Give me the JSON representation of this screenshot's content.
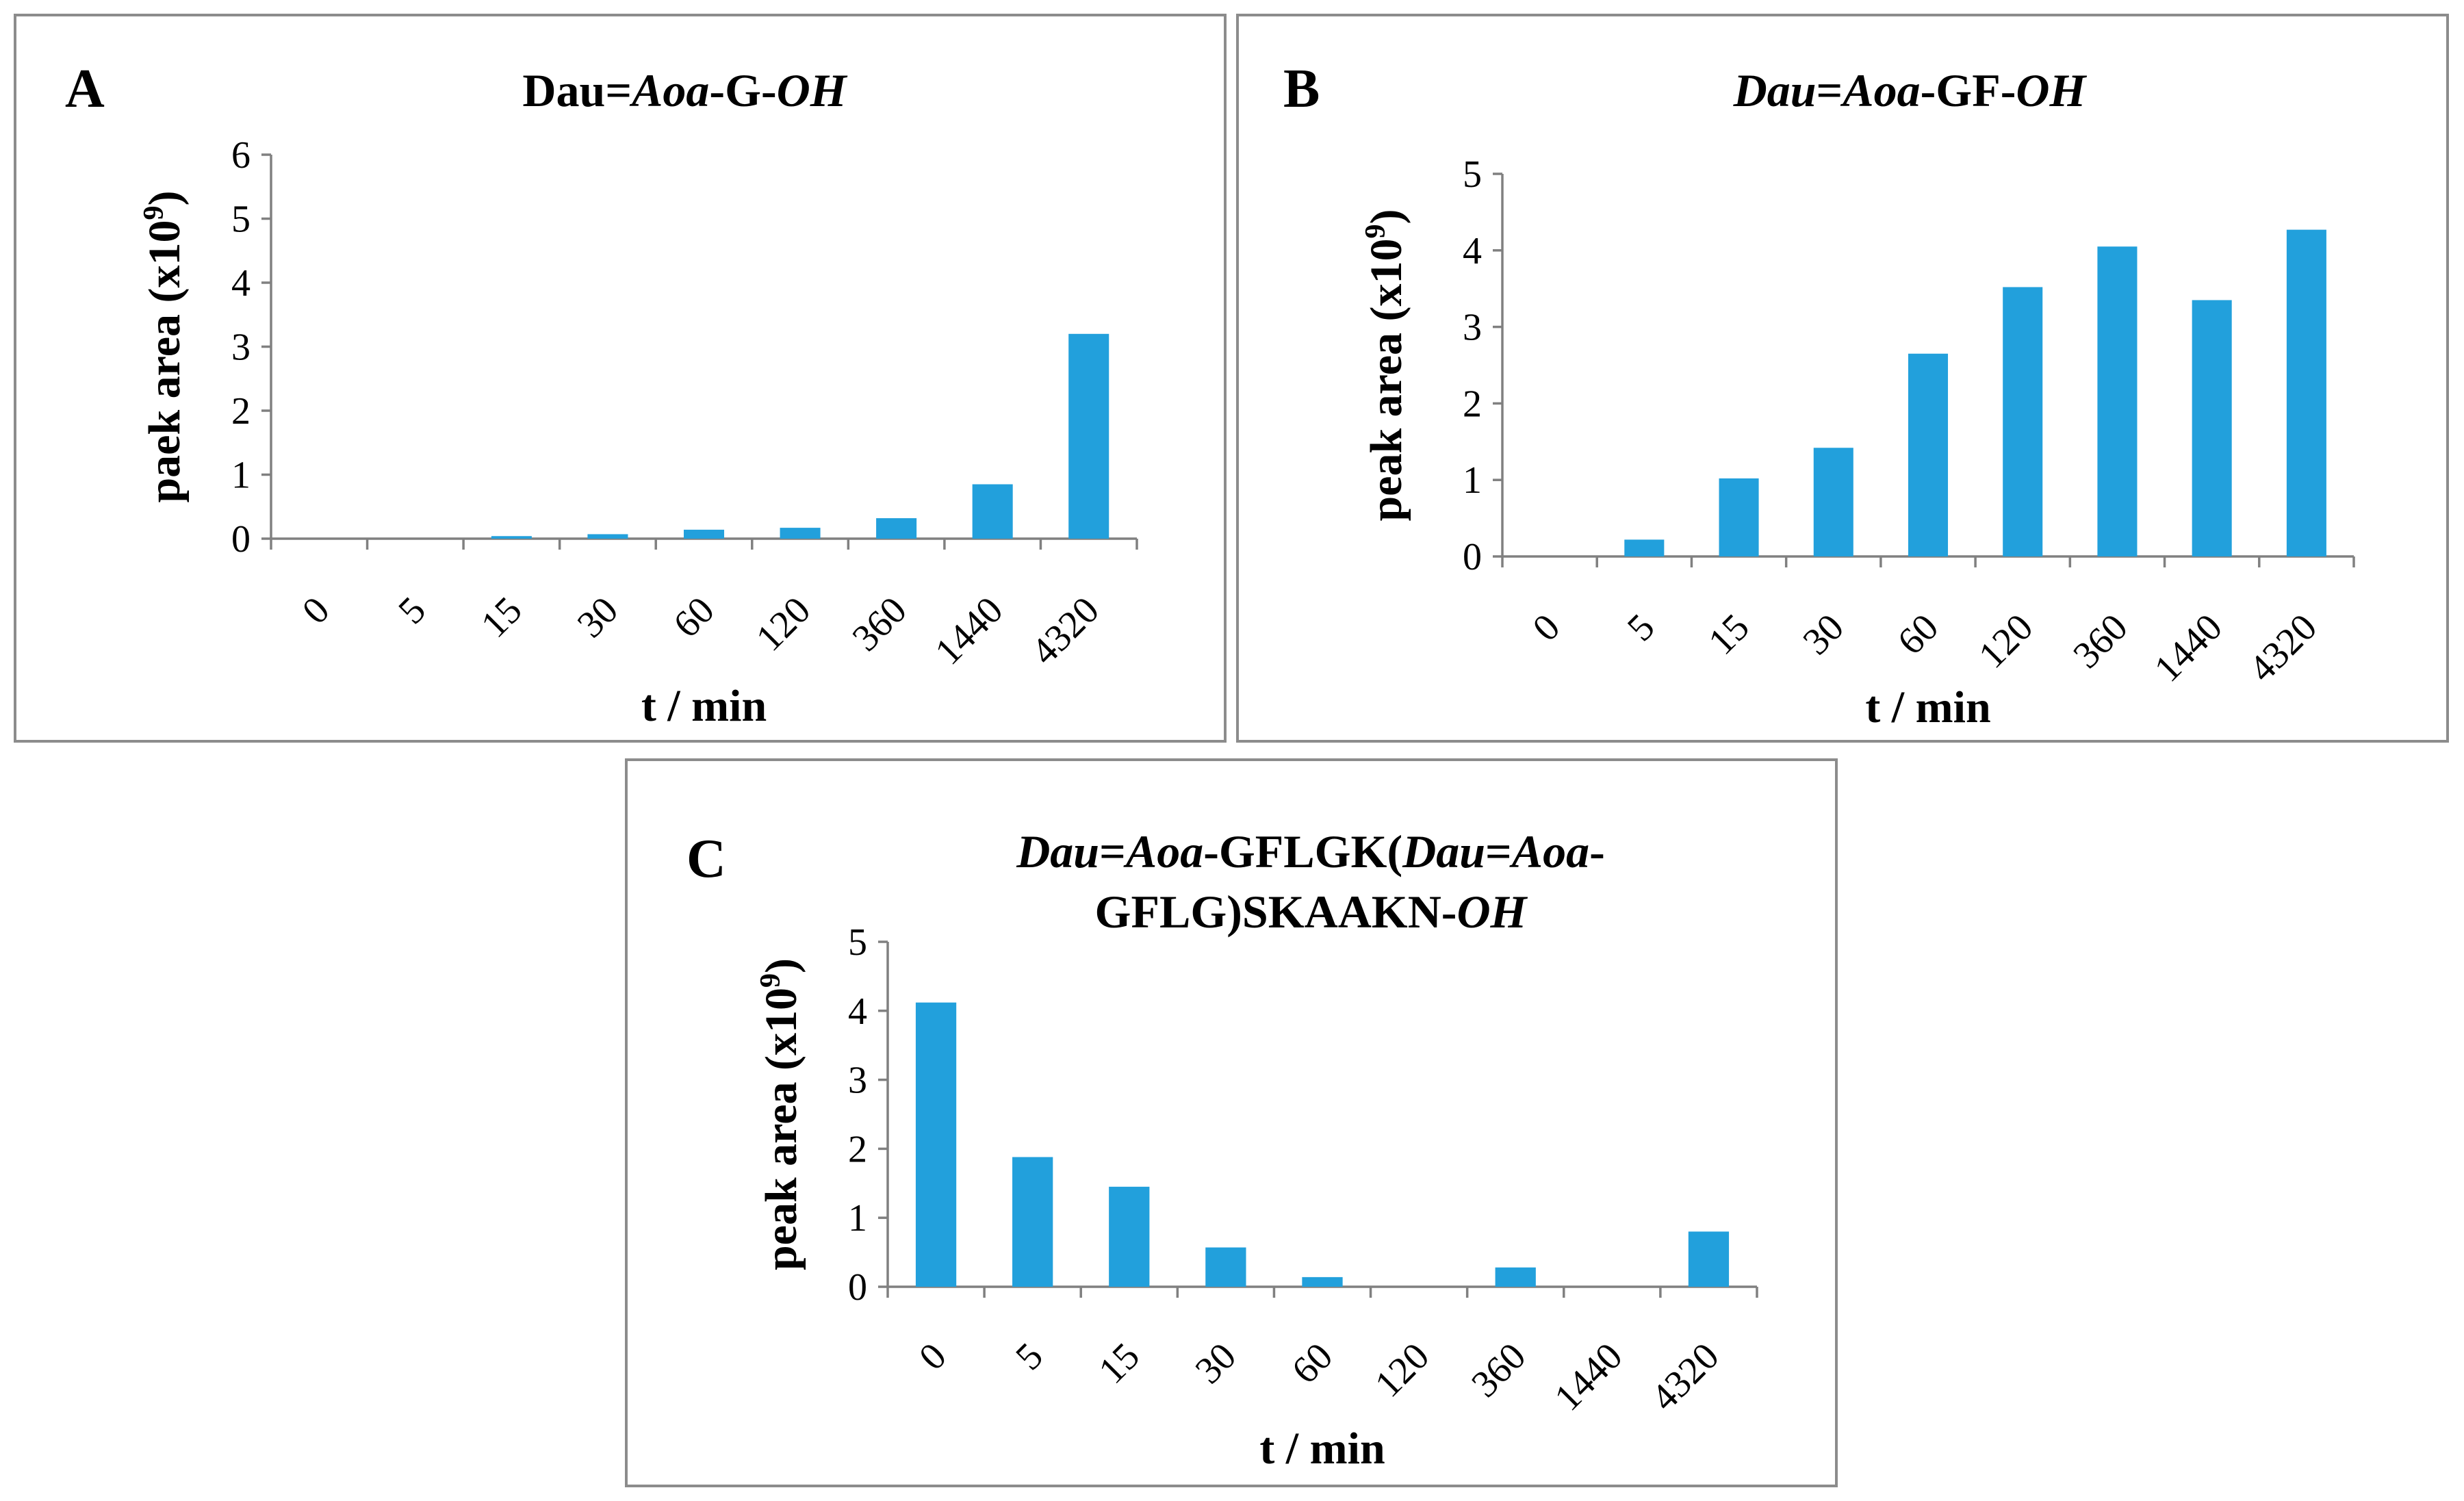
{
  "chart_data": [
    {
      "type": "bar",
      "panel": "A",
      "title_parts": [
        {
          "t": "Dau",
          "i": false
        },
        {
          "t": "=",
          "i": false
        },
        {
          "t": "Aoa",
          "i": true
        },
        {
          "t": "-G-",
          "i": false
        },
        {
          "t": "OH",
          "i": true
        }
      ],
      "xlabel": "t / min",
      "ylabel": "paek area (x10",
      "ylabel_sup": "9",
      "ylabel_end": ")",
      "categories": [
        "0",
        "5",
        "15",
        "30",
        "60",
        "120",
        "360",
        "1440",
        "4320"
      ],
      "values": [
        0,
        0,
        0.04,
        0.07,
        0.14,
        0.17,
        0.32,
        0.85,
        3.2
      ],
      "ylim": [
        0,
        6
      ],
      "yticks": [
        0,
        1,
        2,
        3,
        4,
        5,
        6
      ]
    },
    {
      "type": "bar",
      "panel": "B",
      "title_parts": [
        {
          "t": "Dau",
          "i": true
        },
        {
          "t": "=",
          "i": false
        },
        {
          "t": "Aoa",
          "i": true
        },
        {
          "t": "-GF-",
          "i": false
        },
        {
          "t": "OH",
          "i": true
        }
      ],
      "xlabel": "t / min",
      "ylabel": "peak area (x10",
      "ylabel_sup": "9",
      "ylabel_end": ")",
      "categories": [
        "0",
        "5",
        "15",
        "30",
        "60",
        "120",
        "360",
        "1440",
        "4320"
      ],
      "values": [
        0,
        0.22,
        1.02,
        1.42,
        2.65,
        3.52,
        4.05,
        3.35,
        4.27
      ],
      "ylim": [
        0,
        5
      ],
      "yticks": [
        0,
        1,
        2,
        3,
        4,
        5
      ]
    },
    {
      "type": "bar",
      "panel": "C",
      "title_lines": [
        [
          {
            "t": "Dau",
            "i": true
          },
          {
            "t": "=",
            "i": false
          },
          {
            "t": "Aoa",
            "i": true
          },
          {
            "t": "-GFLGK(",
            "i": false
          },
          {
            "t": "Dau",
            "i": true
          },
          {
            "t": "=",
            "i": false
          },
          {
            "t": "Aoa",
            "i": true
          },
          {
            "t": "-",
            "i": false
          }
        ],
        [
          {
            "t": "GFLG)SKAAKN-",
            "i": false
          },
          {
            "t": "OH",
            "i": true
          }
        ]
      ],
      "xlabel": "t / min",
      "ylabel": "peak area (x10",
      "ylabel_sup": "9",
      "ylabel_end": ")",
      "categories": [
        "0",
        "5",
        "15",
        "30",
        "60",
        "120",
        "360",
        "1440",
        "4320"
      ],
      "values": [
        4.12,
        1.88,
        1.45,
        0.57,
        0.14,
        0,
        0.28,
        0,
        0.8
      ],
      "ylim": [
        0,
        5
      ],
      "yticks": [
        0,
        1,
        2,
        3,
        4,
        5
      ]
    }
  ],
  "colors": {
    "bar": "#22a0dc",
    "axis": "#808080",
    "frame": "#8c8c8c",
    "text": "#000000"
  }
}
